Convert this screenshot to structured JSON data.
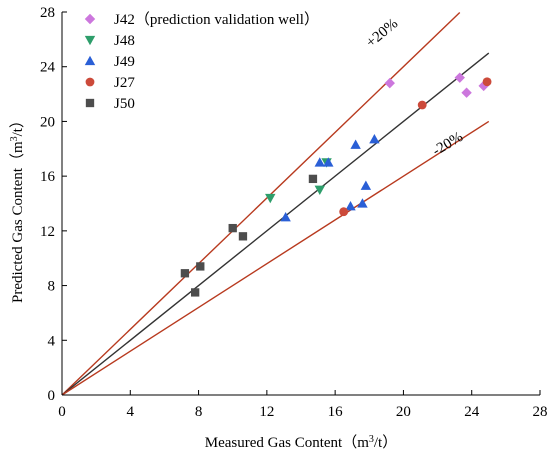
{
  "chart_data": {
    "type": "scatter",
    "title": "",
    "xlabel": "Measured Gas Content",
    "ylabel": "Predicted Gas Content",
    "unit_main": "m",
    "unit_sup": "3",
    "unit_tail": "/t",
    "xlim": [
      0,
      28
    ],
    "ylim": [
      0,
      28
    ],
    "xticks": [
      0,
      4,
      8,
      12,
      16,
      20,
      24,
      28
    ],
    "yticks": [
      0,
      4,
      8,
      12,
      16,
      20,
      24,
      28
    ],
    "grid": false,
    "legend_position": "top-left",
    "series": [
      {
        "name": "J42（prediction validation well）",
        "marker": "diamond",
        "color": "#cc77dd",
        "points": [
          [
            19.2,
            22.8
          ],
          [
            23.3,
            23.2
          ],
          [
            23.7,
            22.1
          ],
          [
            24.7,
            22.6
          ]
        ]
      },
      {
        "name": "J48",
        "marker": "triangle-down",
        "color": "#2e9e6b",
        "points": [
          [
            12.2,
            14.4
          ],
          [
            15.1,
            15.0
          ],
          [
            15.5,
            17.0
          ]
        ]
      },
      {
        "name": "J49",
        "marker": "triangle-up",
        "color": "#2a5fd6",
        "points": [
          [
            13.1,
            13.0
          ],
          [
            15.1,
            17.0
          ],
          [
            15.6,
            17.0
          ],
          [
            16.9,
            13.8
          ],
          [
            17.2,
            18.3
          ],
          [
            17.6,
            14.0
          ],
          [
            17.8,
            15.3
          ],
          [
            18.3,
            18.7
          ]
        ]
      },
      {
        "name": "J27",
        "marker": "circle",
        "color": "#cc4a3a",
        "points": [
          [
            16.5,
            13.4
          ],
          [
            21.1,
            21.2
          ],
          [
            24.9,
            22.9
          ]
        ]
      },
      {
        "name": "J50",
        "marker": "square",
        "color": "#4d4d4d",
        "points": [
          [
            7.2,
            8.9
          ],
          [
            7.8,
            7.5
          ],
          [
            8.1,
            9.4
          ],
          [
            10.0,
            12.2
          ],
          [
            10.6,
            11.6
          ],
          [
            14.7,
            15.8
          ]
        ]
      }
    ],
    "reference_lines": [
      {
        "name": "+20%",
        "slope": 1.2,
        "x_range": [
          0,
          23.3
        ],
        "color": "#b83a1f"
      },
      {
        "name": "1:1",
        "slope": 1.0,
        "x_range": [
          0,
          25.0
        ],
        "color": "#333333"
      },
      {
        "name": "-20%",
        "slope": 0.8,
        "x_range": [
          0,
          25.0
        ],
        "color": "#b83a1f"
      }
    ],
    "annotations": [
      "+20%",
      "-20%"
    ]
  }
}
